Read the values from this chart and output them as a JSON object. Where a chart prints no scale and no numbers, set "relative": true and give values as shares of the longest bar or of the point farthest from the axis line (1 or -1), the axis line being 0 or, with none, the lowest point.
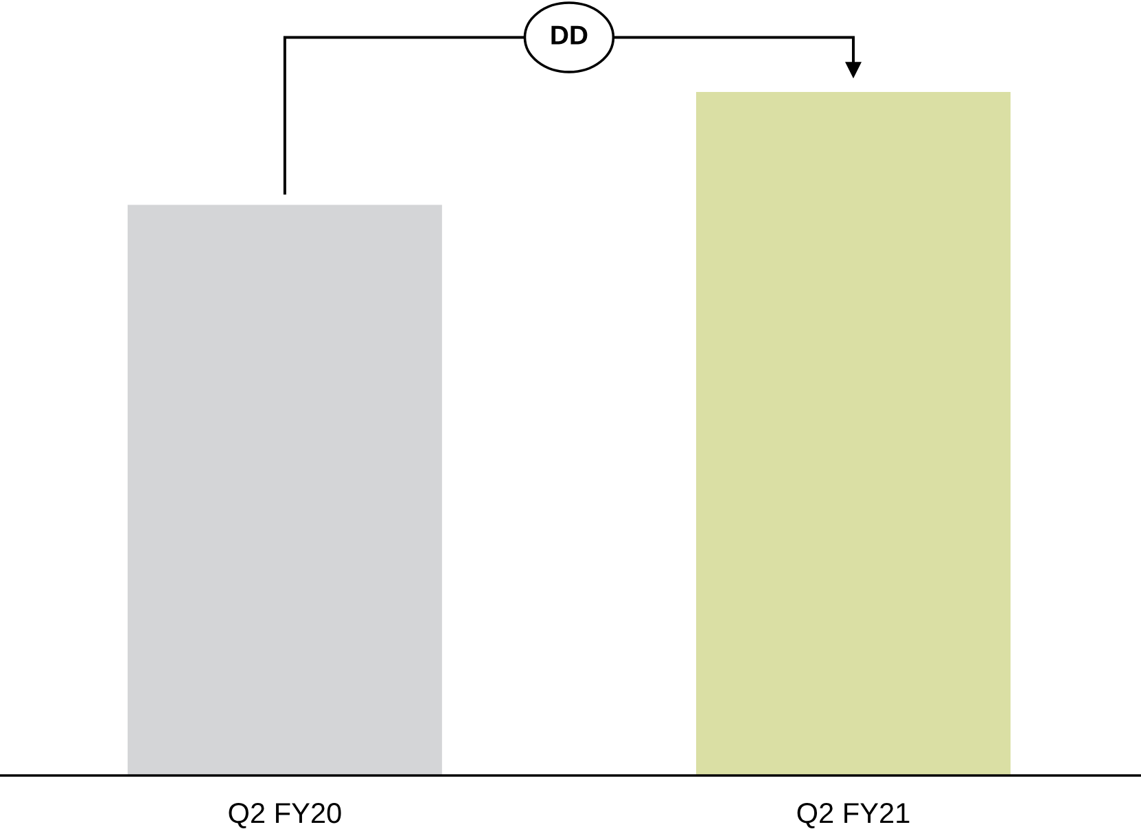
{
  "chart_data": {
    "type": "bar",
    "relative": true,
    "categories": [
      "Q2 FY20",
      "Q2 FY21"
    ],
    "values": [
      0.835,
      1
    ],
    "colors": [
      "#d4d5d7",
      "#dadfa4"
    ],
    "annotations": [
      "DD"
    ],
    "grid": false,
    "legend": false
  }
}
